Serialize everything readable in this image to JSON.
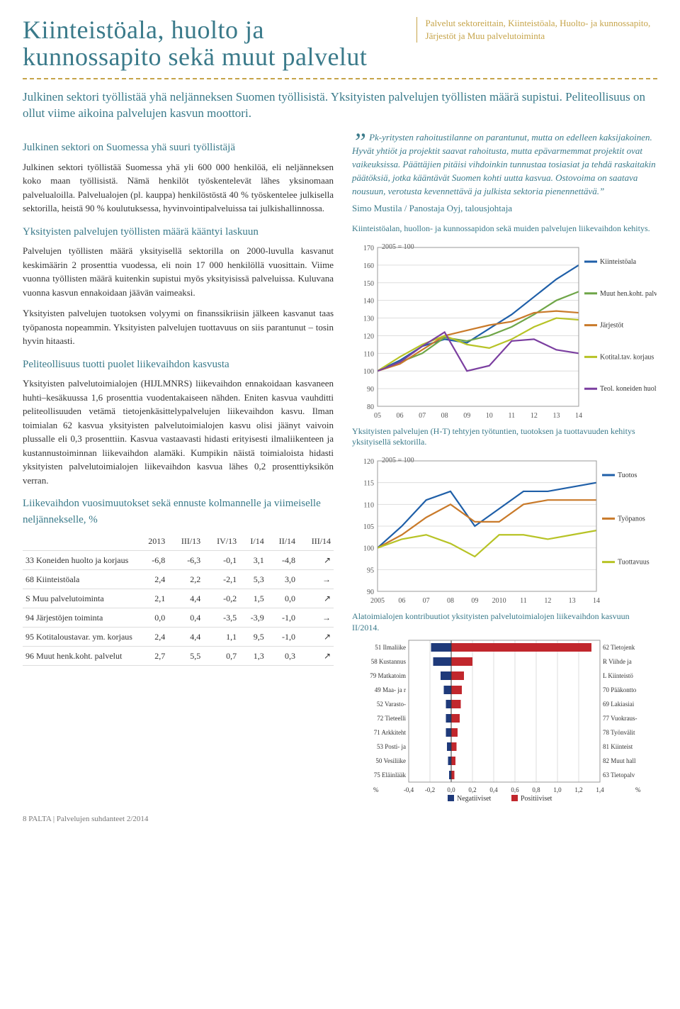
{
  "header": {
    "title": "Kiinteistöala, huolto ja kunnossapito sekä muut palvelut",
    "subtitle": "Palvelut sektoreittain, Kiinteistöala, Huolto- ja kunnossapito, Järjestöt ja Muu palvelutoiminta"
  },
  "intro": "Julkinen sektori työllistää yhä neljänneksen Suomen työllisistä. Yksityisten palvelujen työllisten määrä supistui. Peliteollisuus on ollut viime aikoina palvelujen kasvun moottori.",
  "sections": [
    {
      "h": "Julkinen sektori on Suomessa yhä suuri työllistäjä",
      "p": [
        "Julkinen sektori työllistää Suomessa yhä yli 600 000 henkilöä, eli neljänneksen koko maan työllisistä. Nämä henkilöt työskentelevät lähes yksinomaan palvelualoilla. Palvelualojen (pl. kauppa) henkilöstöstä 40 % työskentelee julkisella sektorilla, heistä 90 % koulutuksessa, hyvinvointipalveluissa tai julkishallinnossa."
      ]
    },
    {
      "h": "Yksityisten palvelujen työllisten määrä kääntyi laskuun",
      "p": [
        "Palvelujen työllisten määrä yksityisellä sektorilla on 2000-luvulla kasvanut keskimäärin 2 prosenttia vuodessa, eli noin 17 000 henkilöllä vuosittain. Viime vuonna työllisten määrä kuitenkin supistui myös yksityisissä palveluissa. Kuluvana vuonna kasvun ennakoidaan jäävän vaimeaksi.",
        "Yksityisten palvelujen tuotoksen volyymi on finanssikriisin jälkeen kasvanut taas työpanosta nopeammin. Yksityisten palvelujen tuottavuus on siis parantunut – tosin hyvin hitaasti."
      ]
    },
    {
      "h": "Peliteollisuus tuotti puolet liikevaihdon kasvusta",
      "p": [
        "Yksityisten palvelutoimialojen (HIJLMNRS) liikevaihdon ennakoidaan kasvaneen huhti–kesäkuussa 1,6 prosenttia vuodentakaiseen nähden. Eniten kasvua vauhditti peliteollisuuden vetämä tietojenkäsittelypalvelujen liikevaihdon kasvu. Ilman toimialan 62 kasvua yksityisten palvelutoimialojen kasvu olisi jäänyt vaivoin plussalle eli 0,3 prosenttiin. Kasvua vastaavasti hidasti erityisesti ilmaliikenteen ja kustannustoiminnan liikevaihdon alamäki. Kumpikin näistä toimialoista hidasti yksityisten palvelutoimialojen liikevaihdon kasvua lähes 0,2 prosenttiyksikön verran."
      ]
    }
  ],
  "table": {
    "title": "Liikevaihdon vuosimuutokset sekä ennuste kolmannelle ja viimeiselle neljännekselle, %",
    "head": [
      "",
      "2013",
      "III/13",
      "IV/13",
      "I/14",
      "II/14",
      "III/14"
    ],
    "rows": [
      [
        "33 Koneiden huolto ja korjaus",
        "-6,8",
        "-6,3",
        "-0,1",
        "3,1",
        "-4,8",
        "↗"
      ],
      [
        "68 Kiinteistöala",
        "2,4",
        "2,2",
        "-2,1",
        "5,3",
        "3,0",
        "→"
      ],
      [
        "S Muu palvelutoiminta",
        "2,1",
        "4,4",
        "-0,2",
        "1,5",
        "0,0",
        "↗"
      ],
      [
        "94 Järjestöjen toiminta",
        "0,0",
        "0,4",
        "-3,5",
        "-3,9",
        "-1,0",
        "→"
      ],
      [
        "95 Kotitaloustavar. ym. korjaus",
        "2,4",
        "4,4",
        "1,1",
        "9,5",
        "-1,0",
        "↗"
      ],
      [
        "96 Muut henk.koht. palvelut",
        "2,7",
        "5,5",
        "0,7",
        "1,3",
        "0,3",
        "↗"
      ]
    ]
  },
  "quote": {
    "text": "Pk-yritysten rahoitustilanne on parantunut, mutta on edelleen kaksijako­inen. Hyvät yhtiöt ja projektit saavat rahoitusta, mutta epävarmemmat projektit ovat vaikeuksissa. Päättäjien pitäisi vihdoinkin tunnustaa tosiasiat ja tehdä raskaitakin päätöksiä, jotka kääntävät Suomen kohti uutta kasvua. Ostovoima on saatava nousuun, verotusta kevennettävä ja julkista sektoria pienennettävä.”",
    "attrib": "Simo Mustila / Panostaja Oyj, talousjohtaja"
  },
  "chart1": {
    "title": "Kiinteistöalan, huollon- ja kunnossapidon sekä muiden palvelujen liikevaihdon kehitys.",
    "note": "2005 = 100",
    "ylim": [
      80,
      170
    ],
    "yticks": [
      80,
      90,
      100,
      110,
      120,
      130,
      140,
      150,
      160,
      170
    ],
    "xticks": [
      "05",
      "06",
      "07",
      "08",
      "09",
      "10",
      "11",
      "12",
      "13",
      "14"
    ],
    "series": [
      {
        "label": "Kiinteistöala",
        "color": "#1f5fa8",
        "vals": [
          100,
          106,
          114,
          118,
          116,
          124,
          132,
          142,
          152,
          160
        ]
      },
      {
        "label": "Muut hen.koht. palv.",
        "color": "#6fa648",
        "vals": [
          100,
          105,
          110,
          119,
          117,
          120,
          125,
          132,
          140,
          145
        ]
      },
      {
        "label": "Järjestöt",
        "color": "#c97a2a",
        "vals": [
          100,
          104,
          112,
          120,
          123,
          126,
          128,
          133,
          134,
          133
        ]
      },
      {
        "label": "Kotital.tav. korjaus",
        "color": "#b7c326",
        "vals": [
          100,
          108,
          115,
          120,
          115,
          113,
          118,
          125,
          130,
          129
        ]
      },
      {
        "label": "Teol. koneiden huolto ja asen.",
        "color": "#7b3fa0",
        "vals": [
          100,
          105,
          114,
          122,
          100,
          103,
          117,
          118,
          112,
          110
        ]
      }
    ],
    "legend_pos": "right"
  },
  "chart2": {
    "title": "Yksityisten palvelujen (H-T) tehtyjen työtuntien, tuotoksen ja tuottavuuden kehitys yksityisellä sektorilla.",
    "note": "2005 = 100",
    "ylim": [
      90,
      120
    ],
    "yticks": [
      90,
      95,
      100,
      105,
      110,
      115,
      120
    ],
    "xticks": [
      "2005",
      "06",
      "07",
      "08",
      "09",
      "2010",
      "11",
      "12",
      "13",
      "14"
    ],
    "series": [
      {
        "label": "Tuotos",
        "color": "#1f5fa8",
        "vals": [
          100,
          105,
          111,
          113,
          105,
          109,
          113,
          113,
          114,
          115
        ]
      },
      {
        "label": "Työpanos",
        "color": "#c97a2a",
        "vals": [
          100,
          103,
          107,
          110,
          106,
          106,
          110,
          111,
          111,
          111
        ]
      },
      {
        "label": "Tuottavuus",
        "color": "#b7c326",
        "vals": [
          100,
          102,
          103,
          101,
          98,
          103,
          103,
          102,
          103,
          104
        ]
      }
    ]
  },
  "chart3": {
    "title": "Alatoimialojen kontribuutiot yksityisten palvelutoimialojen liikevaihdon kasvuun II/2014.",
    "xlim": [
      -0.4,
      1.4
    ],
    "xticks": [
      "-0,4",
      "-0,2",
      "0,0",
      "0,2",
      "0,4",
      "0,6",
      "0,8",
      "1,0",
      "1,2",
      "1,4"
    ],
    "neg_color": "#1f3a7a",
    "pos_color": "#c1272d",
    "rows": [
      {
        "ll": "51 Ilmaliike",
        "rl": "62 Tietojenk",
        "neg": -0.19,
        "pos": 1.32
      },
      {
        "ll": "58 Kustannus",
        "rl": "R Viihde ja",
        "neg": -0.17,
        "pos": 0.2
      },
      {
        "ll": "79 Matkatoim",
        "rl": "L Kiinteistö",
        "neg": -0.1,
        "pos": 0.12
      },
      {
        "ll": "49 Maa- ja r",
        "rl": "70 Pääkontto",
        "neg": -0.07,
        "pos": 0.1
      },
      {
        "ll": "52 Varasto-",
        "rl": "69 Lakiasiai",
        "neg": -0.05,
        "pos": 0.09
      },
      {
        "ll": "72 Tieteelli",
        "rl": "77 Vuokraus-",
        "neg": -0.05,
        "pos": 0.08
      },
      {
        "ll": "71 Arkkiteht",
        "rl": "78 Työnvälit",
        "neg": -0.05,
        "pos": 0.06
      },
      {
        "ll": "53 Posti- ja",
        "rl": "81 Kiinteist",
        "neg": -0.04,
        "pos": 0.05
      },
      {
        "ll": "50 Vesiliike",
        "rl": "82 Muut hall",
        "neg": -0.03,
        "pos": 0.04
      },
      {
        "ll": "75 Eläinlääk",
        "rl": "63 Tietopalv",
        "neg": -0.02,
        "pos": 0.03
      }
    ],
    "legend": {
      "neg": "Negatiiviset",
      "pos": "Positiiviset"
    },
    "pct": "%"
  },
  "footer": "8    PALTA | Palvelujen suhdanteet 2/2014"
}
